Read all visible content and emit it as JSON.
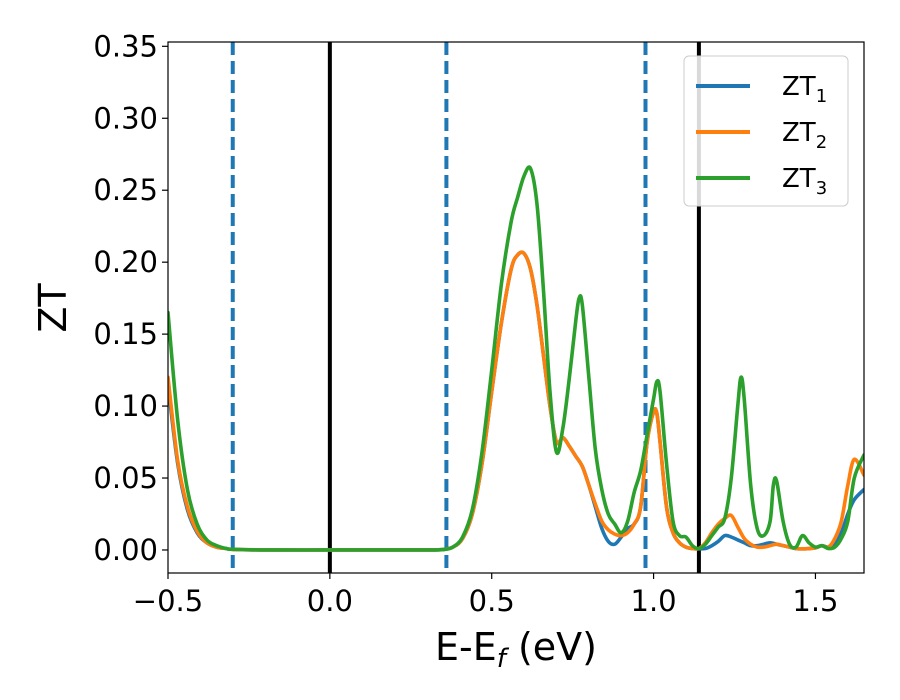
{
  "chart_data": {
    "type": "line",
    "title": "",
    "xlabel": {
      "main": "E-E",
      "sub": "f",
      "unit": " (eV)"
    },
    "ylabel": "ZT",
    "xlim": [
      -0.5,
      1.65
    ],
    "ylim": [
      -0.016,
      0.353
    ],
    "xticks": [
      {
        "value": -0.5,
        "label": "−0.5"
      },
      {
        "value": 0.0,
        "label": "0.0"
      },
      {
        "value": 0.5,
        "label": "0.5"
      },
      {
        "value": 1.0,
        "label": "1.0"
      },
      {
        "value": 1.5,
        "label": "1.5"
      }
    ],
    "yticks": [
      {
        "value": 0.0,
        "label": "0.00"
      },
      {
        "value": 0.05,
        "label": "0.05"
      },
      {
        "value": 0.1,
        "label": "0.10"
      },
      {
        "value": 0.15,
        "label": "0.15"
      },
      {
        "value": 0.2,
        "label": "0.20"
      },
      {
        "value": 0.25,
        "label": "0.25"
      },
      {
        "value": 0.3,
        "label": "0.30"
      },
      {
        "value": 0.35,
        "label": "0.35"
      }
    ],
    "legend_position": "top-right",
    "vlines_solid": [
      0.0,
      1.14
    ],
    "vlines_dashed": [
      -0.3,
      0.36,
      0.975
    ],
    "series": [
      {
        "name": "ZT",
        "sub": "1",
        "color": "#1f77b4",
        "x": [
          -0.5,
          -0.47,
          -0.44,
          -0.41,
          -0.38,
          -0.35,
          -0.32,
          -0.3,
          -0.2,
          0.0,
          0.2,
          0.3,
          0.35,
          0.38,
          0.41,
          0.44,
          0.47,
          0.5,
          0.53,
          0.56,
          0.58,
          0.6,
          0.62,
          0.64,
          0.66,
          0.68,
          0.7,
          0.72,
          0.74,
          0.76,
          0.78,
          0.8,
          0.82,
          0.84,
          0.86,
          0.88,
          0.9,
          0.92,
          0.94,
          0.96,
          0.98,
          1.0,
          1.01,
          1.02,
          1.04,
          1.06,
          1.08,
          1.1,
          1.12,
          1.14,
          1.16,
          1.18,
          1.2,
          1.22,
          1.24,
          1.26,
          1.28,
          1.3,
          1.32,
          1.34,
          1.36,
          1.38,
          1.4,
          1.42,
          1.44,
          1.46,
          1.48,
          1.5,
          1.52,
          1.54,
          1.56,
          1.58,
          1.6,
          1.62,
          1.65
        ],
        "y": [
          0.115,
          0.06,
          0.028,
          0.012,
          0.005,
          0.002,
          0.001,
          0.0004,
          0.0,
          0.0,
          0.0,
          0.0,
          0.0003,
          0.002,
          0.008,
          0.025,
          0.06,
          0.11,
          0.158,
          0.195,
          0.205,
          0.206,
          0.195,
          0.17,
          0.135,
          0.1,
          0.075,
          0.078,
          0.072,
          0.065,
          0.058,
          0.045,
          0.03,
          0.015,
          0.006,
          0.004,
          0.009,
          0.015,
          0.018,
          0.03,
          0.075,
          0.096,
          0.095,
          0.075,
          0.03,
          0.012,
          0.005,
          0.002,
          0.001,
          0.0008,
          0.001,
          0.003,
          0.006,
          0.01,
          0.009,
          0.007,
          0.005,
          0.003,
          0.003,
          0.004,
          0.005,
          0.004,
          0.003,
          0.002,
          0.001,
          0.0008,
          0.001,
          0.0015,
          0.003,
          0.002,
          0.004,
          0.012,
          0.025,
          0.035,
          0.042
        ]
      },
      {
        "name": "ZT",
        "sub": "2",
        "color": "#ff7f0e",
        "x": [
          -0.5,
          -0.47,
          -0.44,
          -0.41,
          -0.38,
          -0.35,
          -0.32,
          -0.3,
          -0.2,
          0.0,
          0.2,
          0.3,
          0.35,
          0.38,
          0.41,
          0.44,
          0.47,
          0.5,
          0.53,
          0.56,
          0.58,
          0.6,
          0.62,
          0.64,
          0.66,
          0.68,
          0.7,
          0.72,
          0.74,
          0.76,
          0.78,
          0.8,
          0.82,
          0.84,
          0.86,
          0.88,
          0.9,
          0.92,
          0.94,
          0.96,
          0.98,
          1.0,
          1.01,
          1.02,
          1.04,
          1.06,
          1.08,
          1.1,
          1.12,
          1.14,
          1.16,
          1.18,
          1.2,
          1.22,
          1.24,
          1.26,
          1.28,
          1.3,
          1.32,
          1.34,
          1.36,
          1.38,
          1.4,
          1.42,
          1.44,
          1.46,
          1.48,
          1.5,
          1.52,
          1.54,
          1.56,
          1.58,
          1.6,
          1.62,
          1.65
        ],
        "y": [
          0.12,
          0.062,
          0.03,
          0.013,
          0.005,
          0.002,
          0.001,
          0.0004,
          0.0,
          0.0,
          0.0,
          0.0,
          0.0003,
          0.002,
          0.008,
          0.025,
          0.06,
          0.11,
          0.158,
          0.195,
          0.205,
          0.206,
          0.195,
          0.17,
          0.135,
          0.1,
          0.075,
          0.078,
          0.072,
          0.065,
          0.058,
          0.045,
          0.032,
          0.02,
          0.014,
          0.011,
          0.01,
          0.012,
          0.018,
          0.03,
          0.075,
          0.096,
          0.095,
          0.075,
          0.03,
          0.012,
          0.005,
          0.002,
          0.001,
          0.001,
          0.005,
          0.012,
          0.018,
          0.022,
          0.024,
          0.016,
          0.008,
          0.004,
          0.002,
          0.002,
          0.003,
          0.004,
          0.003,
          0.002,
          0.001,
          0.0008,
          0.001,
          0.0015,
          0.003,
          0.002,
          0.008,
          0.02,
          0.045,
          0.063,
          0.052
        ]
      },
      {
        "name": "ZT",
        "sub": "3",
        "color": "#2ca02c",
        "x": [
          -0.5,
          -0.47,
          -0.44,
          -0.41,
          -0.38,
          -0.35,
          -0.32,
          -0.3,
          -0.2,
          0.0,
          0.2,
          0.3,
          0.35,
          0.38,
          0.41,
          0.44,
          0.47,
          0.5,
          0.53,
          0.56,
          0.58,
          0.6,
          0.62,
          0.64,
          0.66,
          0.68,
          0.7,
          0.72,
          0.74,
          0.76,
          0.77,
          0.78,
          0.8,
          0.82,
          0.84,
          0.86,
          0.88,
          0.9,
          0.92,
          0.94,
          0.96,
          0.98,
          1.0,
          1.01,
          1.02,
          1.04,
          1.06,
          1.08,
          1.1,
          1.12,
          1.14,
          1.16,
          1.18,
          1.2,
          1.22,
          1.24,
          1.26,
          1.27,
          1.28,
          1.3,
          1.32,
          1.34,
          1.36,
          1.37,
          1.38,
          1.4,
          1.42,
          1.44,
          1.46,
          1.48,
          1.5,
          1.52,
          1.54,
          1.56,
          1.58,
          1.6,
          1.62,
          1.65
        ],
        "y": [
          0.165,
          0.09,
          0.042,
          0.018,
          0.007,
          0.003,
          0.001,
          0.0005,
          0.0,
          0.0,
          0.0,
          0.0,
          0.0003,
          0.002,
          0.009,
          0.028,
          0.068,
          0.125,
          0.185,
          0.228,
          0.245,
          0.26,
          0.265,
          0.24,
          0.18,
          0.11,
          0.068,
          0.085,
          0.12,
          0.16,
          0.175,
          0.17,
          0.12,
          0.07,
          0.042,
          0.025,
          0.018,
          0.012,
          0.02,
          0.04,
          0.055,
          0.08,
          0.105,
          0.117,
          0.11,
          0.06,
          0.02,
          0.01,
          0.009,
          0.003,
          0.001,
          0.004,
          0.01,
          0.016,
          0.022,
          0.05,
          0.1,
          0.12,
          0.105,
          0.045,
          0.015,
          0.01,
          0.02,
          0.045,
          0.048,
          0.02,
          0.004,
          0.002,
          0.01,
          0.005,
          0.002,
          0.003,
          0.001,
          0.002,
          0.008,
          0.02,
          0.05,
          0.066
        ]
      }
    ]
  }
}
